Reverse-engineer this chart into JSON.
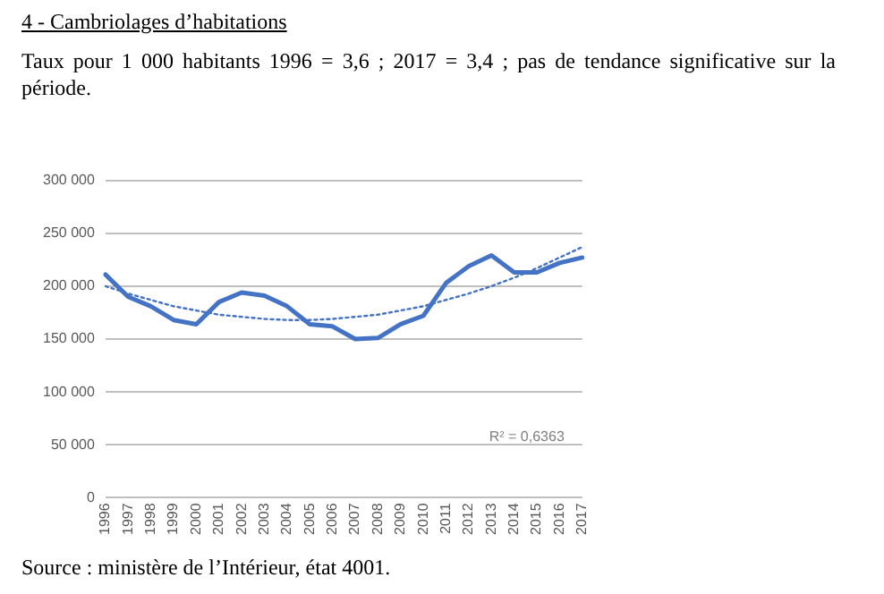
{
  "chart_data": {
    "type": "line",
    "title": "4 - Cambriolages d’habitations",
    "subtitle": "Taux pour 1 000 habitants 1996 = 3,6 ; 2017 = 3,4 ; pas de tendance significative sur la période.",
    "categories": [
      "1996",
      "1997",
      "1998",
      "1999",
      "2000",
      "2001",
      "2002",
      "2003",
      "2004",
      "2005",
      "2006",
      "2007",
      "2008",
      "2009",
      "2010",
      "2011",
      "2012",
      "2013",
      "2014",
      "2015",
      "2016",
      "2017"
    ],
    "series": [
      {
        "color": "#4472c4",
        "values": [
          211000,
          190000,
          181000,
          168000,
          164000,
          185000,
          194000,
          191000,
          181000,
          164000,
          162000,
          150000,
          151000,
          164000,
          172000,
          203000,
          219000,
          229000,
          213000,
          213000,
          222000,
          227000
        ]
      },
      {
        "type": "line",
        "color": "#4472c4",
        "line_style": "dotted",
        "values": [
          200000,
          193000,
          187000,
          181000,
          177000,
          173000,
          171000,
          169000,
          168000,
          168000,
          169000,
          171000,
          173000,
          177000,
          181000,
          187000,
          193000,
          200000,
          208000,
          217000,
          227000,
          237000
        ]
      }
    ],
    "ylim": [
      0,
      300000
    ],
    "yticks": [
      {
        "value": 0,
        "label": "0"
      },
      {
        "value": 50000,
        "label": "50 000"
      },
      {
        "value": 100000,
        "label": "100 000"
      },
      {
        "value": 150000,
        "label": "150 000"
      },
      {
        "value": 200000,
        "label": "200 000"
      },
      {
        "value": 250000,
        "label": "250 000"
      },
      {
        "value": 300000,
        "label": "300 000"
      }
    ],
    "grid": "y",
    "legend": false,
    "marker": "none",
    "line_style": "solid",
    "annotations": [
      "R² = 0,6363",
      "Source : ministère de l’Intérieur, état 4001."
    ]
  }
}
